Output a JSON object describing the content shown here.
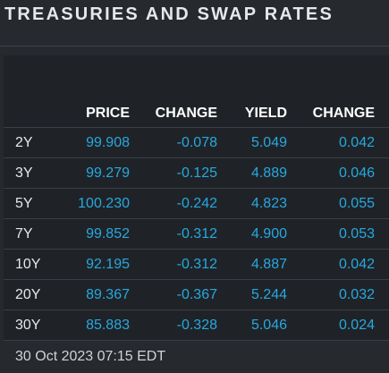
{
  "title": "TREASURIES AND SWAP RATES",
  "table": {
    "headers": [
      "PRICE",
      "CHANGE",
      "YIELD",
      "CHANGE"
    ],
    "rows": [
      {
        "tenor": "2Y",
        "price": "99.908",
        "price_change": "-0.078",
        "yield": "5.049",
        "yield_change": "0.042"
      },
      {
        "tenor": "3Y",
        "price": "99.279",
        "price_change": "-0.125",
        "yield": "4.889",
        "yield_change": "0.046"
      },
      {
        "tenor": "5Y",
        "price": "100.230",
        "price_change": "-0.242",
        "yield": "4.823",
        "yield_change": "0.055"
      },
      {
        "tenor": "7Y",
        "price": "99.852",
        "price_change": "-0.312",
        "yield": "4.900",
        "yield_change": "0.053"
      },
      {
        "tenor": "10Y",
        "price": "92.195",
        "price_change": "-0.312",
        "yield": "4.887",
        "yield_change": "0.042"
      },
      {
        "tenor": "20Y",
        "price": "89.367",
        "price_change": "-0.367",
        "yield": "5.244",
        "yield_change": "0.032"
      },
      {
        "tenor": "30Y",
        "price": "85.883",
        "price_change": "-0.328",
        "yield": "5.046",
        "yield_change": "0.024"
      }
    ]
  },
  "timestamp": "30 Oct 2023 07:15 EDT",
  "colors": {
    "background": "#262a2f",
    "panel": "#1f2327",
    "value": "#27a8e0",
    "header_text": "#ffffff",
    "divider": "#3a3f45"
  }
}
